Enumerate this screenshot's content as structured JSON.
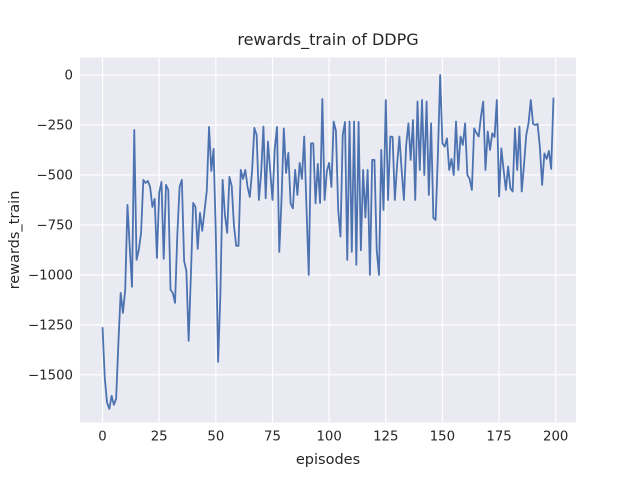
{
  "chart_data": {
    "type": "line",
    "title": "rewards_train of DDPG",
    "xlabel": "episodes",
    "ylabel": "rewards_train",
    "legend": null,
    "grid": true,
    "style": "seaborn-darkgrid",
    "axes_background": "#EAEAF2",
    "grid_color": "#FFFFFF",
    "line_color": "#4C72B0",
    "text_color": "#262626",
    "xlim": [
      -9.95,
      208.95
    ],
    "ylim": [
      -1738,
      87
    ],
    "x_ticks": [
      0,
      25,
      50,
      75,
      100,
      125,
      150,
      175,
      200
    ],
    "x_tick_labels": [
      "0",
      "25",
      "50",
      "75",
      "100",
      "125",
      "150",
      "175",
      "200"
    ],
    "y_ticks": [
      0,
      -250,
      -500,
      -750,
      -1000,
      -1250,
      -1500
    ],
    "y_tick_labels": [
      "0",
      "−250",
      "−500",
      "−750",
      "−1000",
      "−1250",
      "−1500"
    ],
    "x_start": 0,
    "x_step": 1,
    "series": [
      {
        "name": "rewards_train",
        "values": [
          -1265,
          -1520,
          -1640,
          -1670,
          -1605,
          -1650,
          -1620,
          -1340,
          -1090,
          -1190,
          -1075,
          -650,
          -860,
          -1060,
          -275,
          -925,
          -875,
          -790,
          -525,
          -540,
          -530,
          -560,
          -660,
          -620,
          -915,
          -590,
          -535,
          -920,
          -550,
          -575,
          -1075,
          -1090,
          -1140,
          -800,
          -560,
          -525,
          -930,
          -980,
          -1330,
          -1000,
          -640,
          -660,
          -870,
          -690,
          -780,
          -680,
          -580,
          -260,
          -480,
          -370,
          -800,
          -1435,
          -1100,
          -525,
          -700,
          -790,
          -510,
          -555,
          -755,
          -855,
          -855,
          -475,
          -520,
          -475,
          -560,
          -610,
          -480,
          -265,
          -300,
          -625,
          -490,
          -258,
          -617,
          -333,
          -480,
          -625,
          -370,
          -260,
          -885,
          -620,
          -267,
          -490,
          -390,
          -642,
          -667,
          -475,
          -600,
          -440,
          -520,
          -308,
          -660,
          -1000,
          -342,
          -342,
          -642,
          -445,
          -640,
          -120,
          -625,
          -480,
          -440,
          -560,
          -233,
          -280,
          -675,
          -808,
          -300,
          -235,
          -925,
          -233,
          -885,
          -233,
          -950,
          -235,
          -877,
          -475,
          -712,
          -475,
          -1000,
          -425,
          -425,
          -877,
          -1000,
          -375,
          -675,
          -125,
          -625,
          -308,
          -310,
          -625,
          -450,
          -308,
          -475,
          -625,
          -350,
          -242,
          -425,
          -225,
          -625,
          -133,
          -475,
          -125,
          -500,
          -133,
          -600,
          -242,
          -715,
          -725,
          -400,
          0,
          -342,
          -358,
          -317,
          -475,
          -420,
          -500,
          -233,
          -475,
          -308,
          -350,
          -242,
          -500,
          -520,
          -575,
          -267,
          -290,
          -308,
          -208,
          -133,
          -475,
          -283,
          -375,
          -292,
          -310,
          -125,
          -608,
          -367,
          -475,
          -575,
          -458,
          -567,
          -583,
          -267,
          -475,
          -258,
          -583,
          -450,
          -300,
          -242,
          -125,
          -245,
          -250,
          -245,
          -360,
          -550,
          -392,
          -420,
          -380,
          -470,
          -117
        ]
      }
    ]
  }
}
